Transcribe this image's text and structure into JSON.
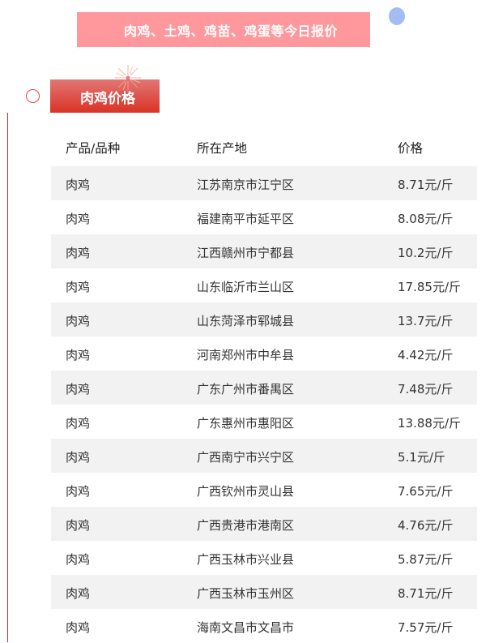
{
  "banner": {
    "title": "肉鸡、土鸡、鸡苗、鸡蛋等今日报价"
  },
  "section": {
    "title": "肉鸡价格"
  },
  "colors": {
    "banner_bg": "#fe989c",
    "section_red": "#d93326",
    "dot_blue": "#a3bdf3",
    "row_alt": "#f2f2f2"
  },
  "table": {
    "headers": [
      "产品/品种",
      "所在产地",
      "价格"
    ],
    "rows": [
      [
        "肉鸡",
        "江苏南京市江宁区",
        "8.71元/斤"
      ],
      [
        "肉鸡",
        "福建南平市延平区",
        "8.08元/斤"
      ],
      [
        "肉鸡",
        "江西赣州市宁都县",
        "10.2元/斤"
      ],
      [
        "肉鸡",
        "山东临沂市兰山区",
        "17.85元/斤"
      ],
      [
        "肉鸡",
        "山东菏泽市郓城县",
        "13.7元/斤"
      ],
      [
        "肉鸡",
        "河南郑州市中牟县",
        "4.42元/斤"
      ],
      [
        "肉鸡",
        "广东广州市番禺区",
        "7.48元/斤"
      ],
      [
        "肉鸡",
        "广东惠州市惠阳区",
        "13.88元/斤"
      ],
      [
        "肉鸡",
        "广西南宁市兴宁区",
        "5.1元/斤"
      ],
      [
        "肉鸡",
        "广西钦州市灵山县",
        "7.65元/斤"
      ],
      [
        "肉鸡",
        "广西贵港市港南区",
        "4.76元/斤"
      ],
      [
        "肉鸡",
        "广西玉林市兴业县",
        "5.87元/斤"
      ],
      [
        "肉鸡",
        "广西玉林市玉州区",
        "8.71元/斤"
      ],
      [
        "肉鸡",
        "海南文昌市文昌市",
        "7.57元/斤"
      ]
    ]
  }
}
